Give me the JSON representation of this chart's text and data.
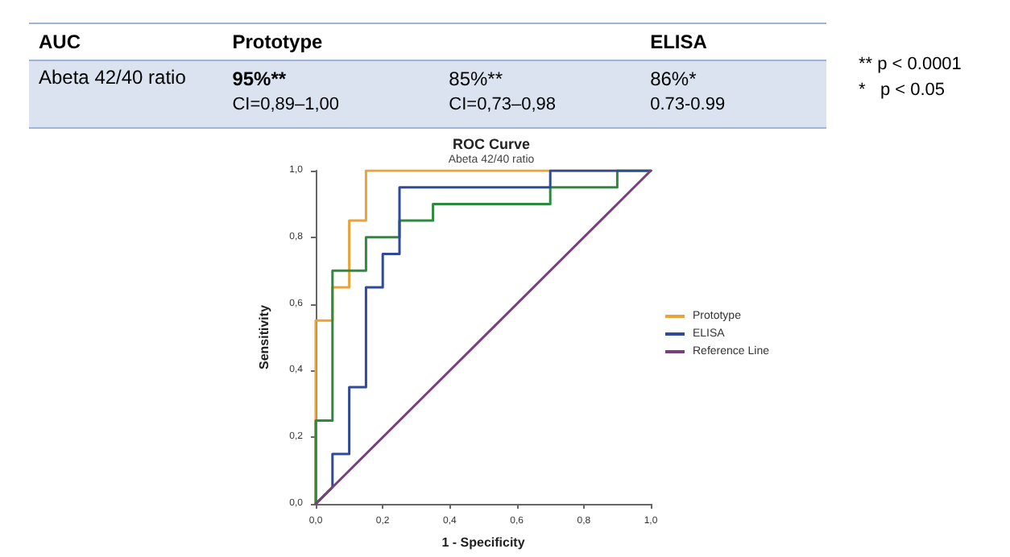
{
  "chart_data": [
    {
      "type": "other",
      "categories": [
        "AUC",
        "Prototype",
        null,
        "ELISA"
      ],
      "annotations": [
        "Abeta 42/40 ratio",
        "95%**",
        "CI=0,89–1,00",
        "85%**",
        "CI=0,73–0,98",
        "86%*",
        "0.73-0.99",
        "** p < 0.0001",
        "*   p < 0.05"
      ]
    },
    {
      "type": "line",
      "title": "ROC Curve",
      "subtitle": "Abeta 42/40 ratio",
      "xlabel": "1 - Specificity",
      "ylabel": "Sensitivity",
      "xlim": [
        0,
        1
      ],
      "ylim": [
        0,
        1
      ],
      "xticks": [
        {
          "value": 0,
          "label": "0,0"
        },
        {
          "value": 0.2,
          "label": "0,2"
        },
        {
          "value": 0.4,
          "label": "0,4"
        },
        {
          "value": 0.6,
          "label": "0,6"
        },
        {
          "value": 0.8,
          "label": "0,8"
        },
        {
          "value": 1,
          "label": "1,0"
        }
      ],
      "yticks": [
        {
          "value": 0,
          "label": "0,0"
        },
        {
          "value": 0.2,
          "label": "0,2"
        },
        {
          "value": 0.4,
          "label": "0,4"
        },
        {
          "value": 0.6,
          "label": "0,6"
        },
        {
          "value": 0.8,
          "label": "0,8"
        },
        {
          "value": 1,
          "label": "1,0"
        }
      ],
      "grid": false,
      "legend": "right",
      "marker": "none",
      "line_style": "solid",
      "series": [
        {
          "name": "Prototype",
          "color": "#e8a33a",
          "x": [
            0,
            0,
            0.05,
            0.05,
            0.1,
            0.1,
            0.15,
            0.15,
            1
          ],
          "values": [
            0,
            0.55,
            0.55,
            0.65,
            0.65,
            0.85,
            0.85,
            1,
            1
          ]
        },
        {
          "color": "#2e8b3e",
          "x": [
            0,
            0,
            0.05,
            0.05,
            0.15,
            0.15,
            0.25,
            0.25,
            0.35,
            0.35,
            0.7,
            0.7,
            0.9,
            0.9,
            1
          ],
          "values": [
            0,
            0.25,
            0.25,
            0.7,
            0.7,
            0.8,
            0.8,
            0.85,
            0.85,
            0.9,
            0.9,
            0.95,
            0.95,
            1,
            1
          ]
        },
        {
          "name": "ELISA",
          "color": "#2f4a9a",
          "x": [
            0,
            0.05,
            0.05,
            0.1,
            0.1,
            0.15,
            0.15,
            0.2,
            0.2,
            0.25,
            0.25,
            0.7,
            0.7,
            1
          ],
          "values": [
            0,
            0.05,
            0.15,
            0.15,
            0.35,
            0.35,
            0.65,
            0.65,
            0.75,
            0.75,
            0.95,
            0.95,
            1,
            1
          ]
        },
        {
          "name": "Reference Line",
          "color": "#7b3f7f",
          "x": [
            0,
            1
          ],
          "values": [
            0,
            1
          ]
        }
      ]
    }
  ]
}
